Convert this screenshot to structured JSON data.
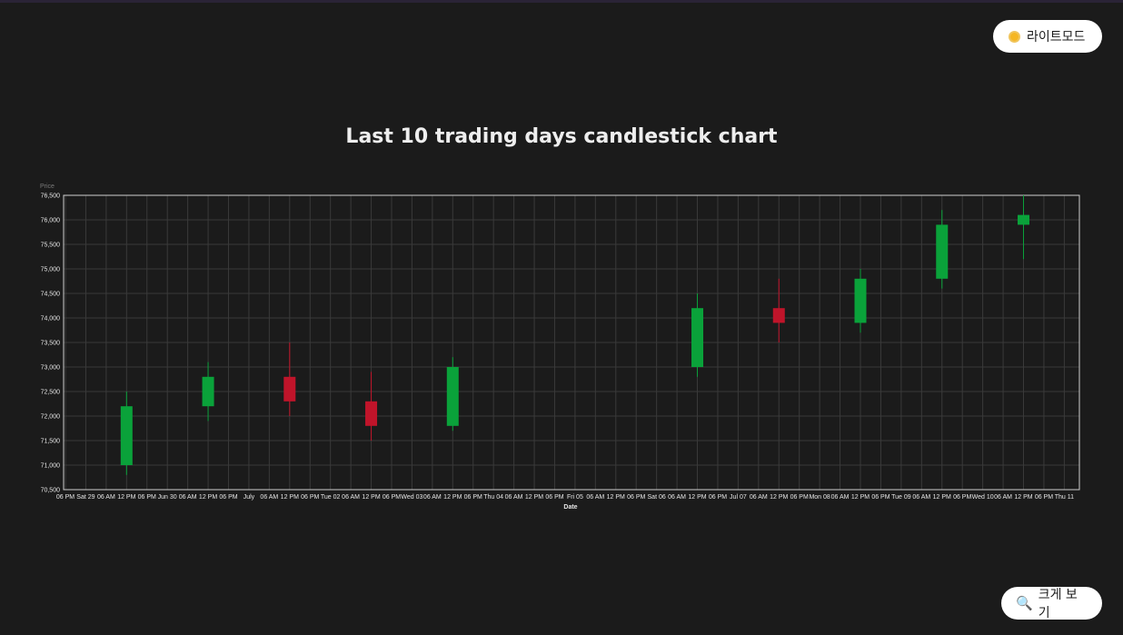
{
  "controls": {
    "light_mode_label": "라이트모드",
    "zoom_label": "크게 보기"
  },
  "colors": {
    "up": "#0aa23a",
    "down": "#c0142a",
    "grid": "#3a3a3a",
    "background": "#1b1b1b"
  },
  "chart_data": {
    "type": "candlestick",
    "title": "Last 10 trading days candlestick chart",
    "ylabel": "Price",
    "xlabel": "Date",
    "ylim": [
      70500,
      76500
    ],
    "yticks": [
      "70,500",
      "71,000",
      "71,500",
      "72,000",
      "72,500",
      "73,000",
      "73,500",
      "74,000",
      "74,500",
      "75,000",
      "75,500",
      "76,000",
      "76,500"
    ],
    "xticks": [
      "06 PM",
      "Sat 29",
      "06 AM",
      "12 PM",
      "06 PM",
      "Jun 30",
      "06 AM",
      "12 PM",
      "06 PM",
      "July",
      "06 AM",
      "12 PM",
      "06 PM",
      "Tue 02",
      "06 AM",
      "12 PM",
      "06 PM",
      "Wed 03",
      "06 AM",
      "12 PM",
      "06 PM",
      "Thu 04",
      "06 AM",
      "12 PM",
      "06 PM",
      "Fri 05",
      "06 AM",
      "12 PM",
      "06 PM",
      "Sat 06",
      "06 AM",
      "12 PM",
      "06 PM",
      "Jul 07",
      "06 AM",
      "12 PM",
      "06 PM",
      "Mon 08",
      "06 AM",
      "12 PM",
      "06 PM",
      "Tue 09",
      "06 AM",
      "12 PM",
      "06 PM",
      "Wed 10",
      "06 AM",
      "12 PM",
      "06 PM",
      "Thu 11"
    ],
    "candles": [
      {
        "date": "2021-06-29",
        "open": 71000,
        "high": 72500,
        "low": 70800,
        "close": 72200
      },
      {
        "date": "2021-06-30",
        "open": 72200,
        "high": 73100,
        "low": 71900,
        "close": 72800
      },
      {
        "date": "2021-07-01",
        "open": 72800,
        "high": 73500,
        "low": 72000,
        "close": 72300
      },
      {
        "date": "2021-07-02",
        "open": 72300,
        "high": 72900,
        "low": 71500,
        "close": 71800
      },
      {
        "date": "2021-07-03",
        "open": 71800,
        "high": 73200,
        "low": 71700,
        "close": 73000
      },
      {
        "date": "2021-07-06",
        "open": 73000,
        "high": 74500,
        "low": 72800,
        "close": 74200
      },
      {
        "date": "2021-07-07",
        "open": 74200,
        "high": 74800,
        "low": 73500,
        "close": 73900
      },
      {
        "date": "2021-07-08",
        "open": 73900,
        "high": 75000,
        "low": 73700,
        "close": 74800
      },
      {
        "date": "2021-07-09",
        "open": 74800,
        "high": 76200,
        "low": 74600,
        "close": 75900
      },
      {
        "date": "2021-07-10",
        "open": 75900,
        "high": 76500,
        "low": 75200,
        "close": 76100
      }
    ]
  }
}
